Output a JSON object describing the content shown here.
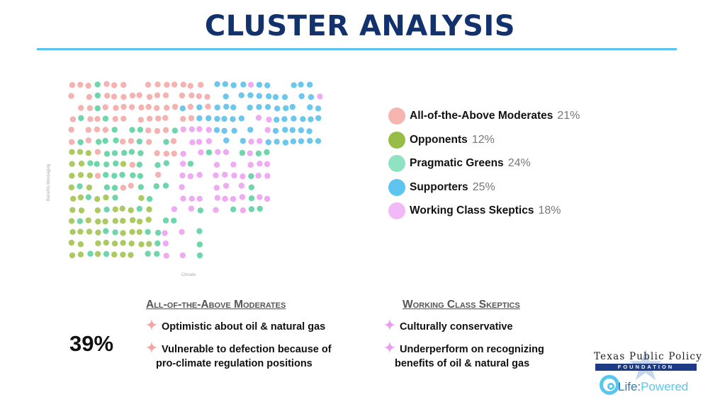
{
  "title": "CLUSTER ANALYSIS",
  "chart_data": {
    "type": "scatter",
    "xlabel": "Climate",
    "ylabel": "Benefits Messaging",
    "series": [
      {
        "name": "All-of-the-Above Moderates",
        "color": "#f2a5a3"
      },
      {
        "name": "Opponents",
        "color": "#9fc046"
      },
      {
        "name": "Pragmatic Greens",
        "color": "#56cf9e"
      },
      {
        "name": "Supporters",
        "color": "#54bde9"
      },
      {
        "name": "Working Class Skeptics",
        "color": "#ec9cf0"
      }
    ],
    "legend_position": "right"
  },
  "legend": [
    {
      "label": "All-of-the-Above Moderates",
      "pct": "21%",
      "color": "#f7b5b2"
    },
    {
      "label": "Opponents",
      "pct": "12%",
      "color": "#98bd46"
    },
    {
      "label": "Pragmatic Greens",
      "pct": "24%",
      "color": "#8fe2c2"
    },
    {
      "label": "Supporters",
      "pct": "25%",
      "color": "#5ec5f0"
    },
    {
      "label": "Working Class Skeptics",
      "pct": "18%",
      "color": "#f3b9f7"
    }
  ],
  "big_pct": "39%",
  "col_left": {
    "title": "All-of-the-Above Moderates",
    "star_color": "#f2a5a3",
    "bullets": [
      "Optimistic about oil & natural gas",
      "Vulnerable to defection because of",
      "pro-climate regulation positions"
    ]
  },
  "col_right": {
    "title": "Working Class Skeptics",
    "star_color": "#ec9cf0",
    "bullets": [
      "Culturally conservative",
      "Underperform on recognizing",
      "benefits of oil & natural gas"
    ]
  },
  "logo": {
    "name": "Texas Public Policy",
    "bar": "FOUNDATION",
    "tagline_a": "Life:",
    "tagline_b": "Powered"
  }
}
